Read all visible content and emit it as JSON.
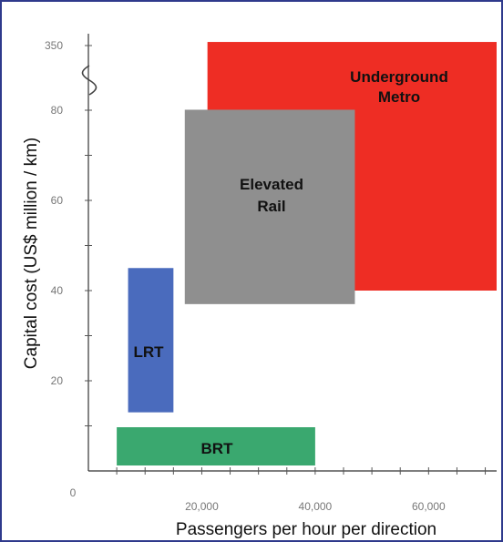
{
  "chart_data": {
    "type": "range-boxes",
    "xlabel": "Passengers per hour per direction",
    "ylabel": "Capital cost  (US$ million / km)",
    "x_ticks": [
      {
        "value": 0,
        "label": "0"
      },
      {
        "value": 20000,
        "label": "20,000"
      },
      {
        "value": 40000,
        "label": "40,000"
      },
      {
        "value": 60000,
        "label": "60,000"
      }
    ],
    "x_range": [
      0,
      72000
    ],
    "y_ticks": [
      {
        "value": 20,
        "label": "20"
      },
      {
        "value": 40,
        "label": "40"
      },
      {
        "value": 60,
        "label": "60"
      },
      {
        "value": 80,
        "label": "80"
      },
      {
        "value": 350,
        "label": "350"
      }
    ],
    "y_axis_break": {
      "between": [
        80,
        350
      ]
    },
    "regions": [
      {
        "name": "Underground Metro",
        "x": [
          21000,
          72000
        ],
        "y": [
          40,
          365
        ],
        "color": "#ee2d24"
      },
      {
        "name": "Elevated Rail",
        "x": [
          17000,
          47000
        ],
        "y": [
          37,
          82
        ],
        "color": "#8f8f8f"
      },
      {
        "name": "LRT",
        "x": [
          7000,
          15000
        ],
        "y": [
          13,
          45
        ],
        "color": "#4a6bbd"
      },
      {
        "name": "BRT",
        "x": [
          5000,
          40000
        ],
        "y": [
          0,
          10
        ],
        "color": "#3aa86f"
      }
    ]
  }
}
